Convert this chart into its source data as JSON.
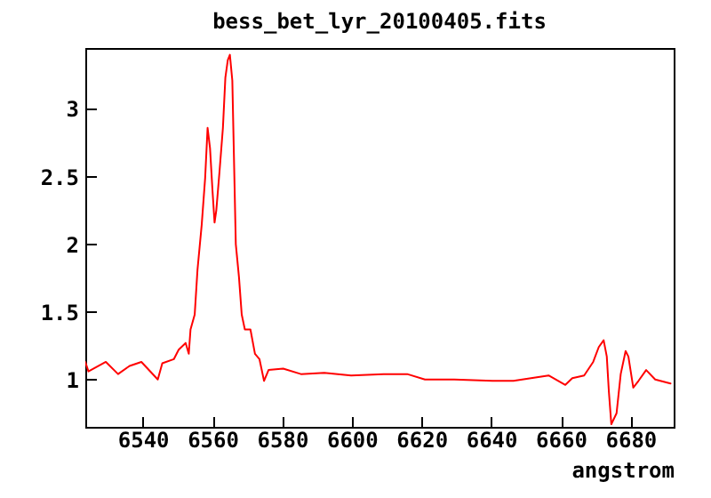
{
  "chart_data": {
    "type": "line",
    "title": "bess_bet_lyr_20100405.fits",
    "xlabel": "angstrom",
    "x": [
      6523.5,
      6524.4,
      6529.4,
      6532.9,
      6536.2,
      6539.6,
      6544.3,
      6545.6,
      6548.9,
      6550.3,
      6552.3,
      6553.2,
      6553.7,
      6554.9,
      6555.7,
      6556.9,
      6557.9,
      6558.6,
      6559.3,
      6560.0,
      6560.6,
      6561.1,
      6562.0,
      6563.0,
      6563.7,
      6564.4,
      6565.0,
      6565.7,
      6566.7,
      6567.6,
      6568.4,
      6569.3,
      6570.9,
      6572.2,
      6573.5,
      6574.8,
      6576.1,
      6580.3,
      6585.4,
      6592.1,
      6599.8,
      6609.1,
      6615.9,
      6621.0,
      6629.4,
      6640.4,
      6646.4,
      6656.5,
      6661.3,
      6663.3,
      6666.7,
      6669.3,
      6670.9,
      6672.3,
      6673.2,
      6673.8,
      6674.5,
      6676.0,
      6677.2,
      6678.6,
      6679.4,
      6680.8,
      6682.3,
      6684.5,
      6687.1,
      6691.5
    ],
    "series": [
      {
        "color": "#ff0000",
        "values": [
          1.13,
          1.06,
          1.13,
          1.04,
          1.1,
          1.13,
          1.0,
          1.12,
          1.15,
          1.22,
          1.27,
          1.19,
          1.37,
          1.48,
          1.81,
          2.14,
          2.49,
          2.86,
          2.71,
          2.4,
          2.16,
          2.25,
          2.53,
          2.86,
          3.23,
          3.36,
          3.4,
          3.21,
          2.0,
          1.76,
          1.48,
          1.37,
          1.37,
          1.19,
          1.15,
          0.99,
          1.07,
          1.08,
          1.04,
          1.05,
          1.03,
          1.04,
          1.04,
          1.0,
          1.0,
          0.99,
          0.99,
          1.03,
          0.96,
          1.01,
          1.03,
          1.13,
          1.24,
          1.29,
          1.17,
          0.91,
          0.67,
          0.75,
          1.04,
          1.21,
          1.17,
          0.94,
          0.99,
          1.07,
          1.0,
          0.97
        ]
      }
    ],
    "xlim": [
      6523.5,
      6692.4
    ],
    "ylim": [
      0.65,
      3.45
    ],
    "xticks": [
      6540,
      6560,
      6580,
      6600,
      6620,
      6640,
      6660,
      6680
    ],
    "yticks": [
      1,
      1.5,
      2,
      2.5,
      3
    ],
    "grid": false,
    "legend": false,
    "line_style": "solid"
  }
}
